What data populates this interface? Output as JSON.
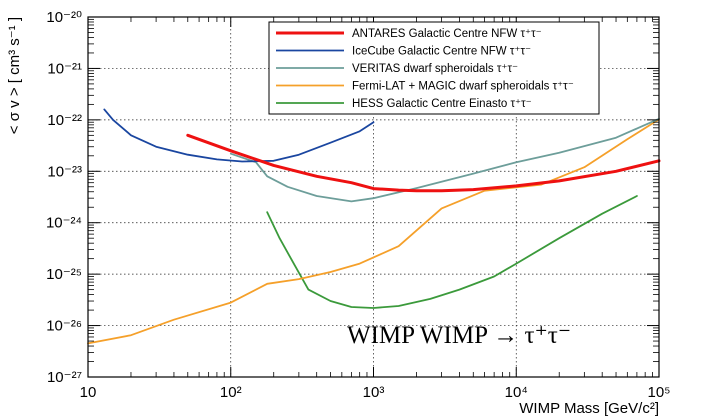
{
  "chart_data": {
    "type": "line",
    "title": "",
    "xlabel": "WIMP Mass [GeV/c²]",
    "ylabel": "< σ v > [ cm³ s⁻¹ ]",
    "xscale": "log",
    "yscale": "log",
    "xlim": [
      10,
      100000
    ],
    "ylim": [
      1e-27,
      1e-20
    ],
    "grid": true,
    "legend_position": "top-right",
    "x_ticks": [
      "10",
      "10²",
      "10³",
      "10⁴",
      "10⁵"
    ],
    "y_ticks": [
      "10⁻²⁷",
      "10⁻²⁶",
      "10⁻²⁵",
      "10⁻²⁴",
      "10⁻²³",
      "10⁻²²",
      "10⁻²¹",
      "10⁻²⁰"
    ],
    "annotation": "WIMP WIMP → τ⁺τ⁻",
    "series": [
      {
        "name": "ANTARES Galactic Centre NFW τ⁺τ⁻",
        "color": "#ee1111",
        "width": 3,
        "x": [
          50,
          100,
          200,
          400,
          700,
          1000,
          1500,
          2000,
          3000,
          5000,
          10000,
          20000,
          50000,
          100000
        ],
        "y": [
          5e-23,
          2.5e-23,
          1.3e-23,
          8e-24,
          6e-24,
          4.6e-24,
          4.3e-24,
          4.2e-24,
          4.2e-24,
          4.4e-24,
          5.2e-24,
          6.5e-24,
          1e-23,
          1.6e-23
        ]
      },
      {
        "name": "IceCube Galactic Centre NFW τ⁺τ⁻",
        "color": "#1a46a0",
        "width": 1.8,
        "x": [
          13,
          15,
          20,
          30,
          50,
          80,
          120,
          200,
          300,
          500,
          800,
          1000
        ],
        "y": [
          1.6e-22,
          1e-22,
          5e-23,
          3e-23,
          2.1e-23,
          1.7e-23,
          1.55e-23,
          1.6e-23,
          2.1e-23,
          3.6e-23,
          6e-23,
          9e-23
        ]
      },
      {
        "name": "VERITAS dwarf spheroidals τ⁺τ⁻",
        "color": "#6d9e9a",
        "width": 1.8,
        "x": [
          100,
          150,
          180,
          250,
          400,
          700,
          1000,
          2000,
          5000,
          10000,
          20000,
          50000,
          100000
        ],
        "y": [
          2.2e-23,
          1.5e-23,
          8e-24,
          5e-24,
          3.3e-24,
          2.6e-24,
          3e-24,
          4.7e-24,
          9e-24,
          1.5e-23,
          2.3e-23,
          4.5e-23,
          1.05e-22
        ]
      },
      {
        "name": "Fermi-LAT + MAGIC dwarf spheroidals τ⁺τ⁻",
        "color": "#f5a02a",
        "width": 1.8,
        "x": [
          10,
          20,
          40,
          100,
          180,
          300,
          500,
          800,
          1500,
          3000,
          6000,
          15000,
          30000,
          60000,
          100000
        ],
        "y": [
          4.5e-27,
          6.5e-27,
          1.3e-26,
          2.8e-26,
          6.5e-26,
          8e-26,
          1.1e-25,
          1.6e-25,
          3.5e-25,
          1.9e-24,
          4.2e-24,
          5.5e-24,
          1.2e-23,
          4.2e-23,
          1.02e-22
        ]
      },
      {
        "name": "HESS Galactic Centre Einasto τ⁺τ⁻",
        "color": "#3b9a3b",
        "width": 1.8,
        "x": [
          180,
          220,
          280,
          350,
          500,
          700,
          1000,
          1500,
          2500,
          4000,
          7000,
          10000,
          20000,
          40000,
          70000
        ],
        "y": [
          1.6e-24,
          5e-25,
          1.5e-25,
          5e-26,
          3e-26,
          2.3e-26,
          2.2e-26,
          2.4e-26,
          3.3e-26,
          5e-26,
          9e-26,
          1.6e-25,
          5e-25,
          1.5e-24,
          3.3e-24
        ]
      }
    ]
  }
}
